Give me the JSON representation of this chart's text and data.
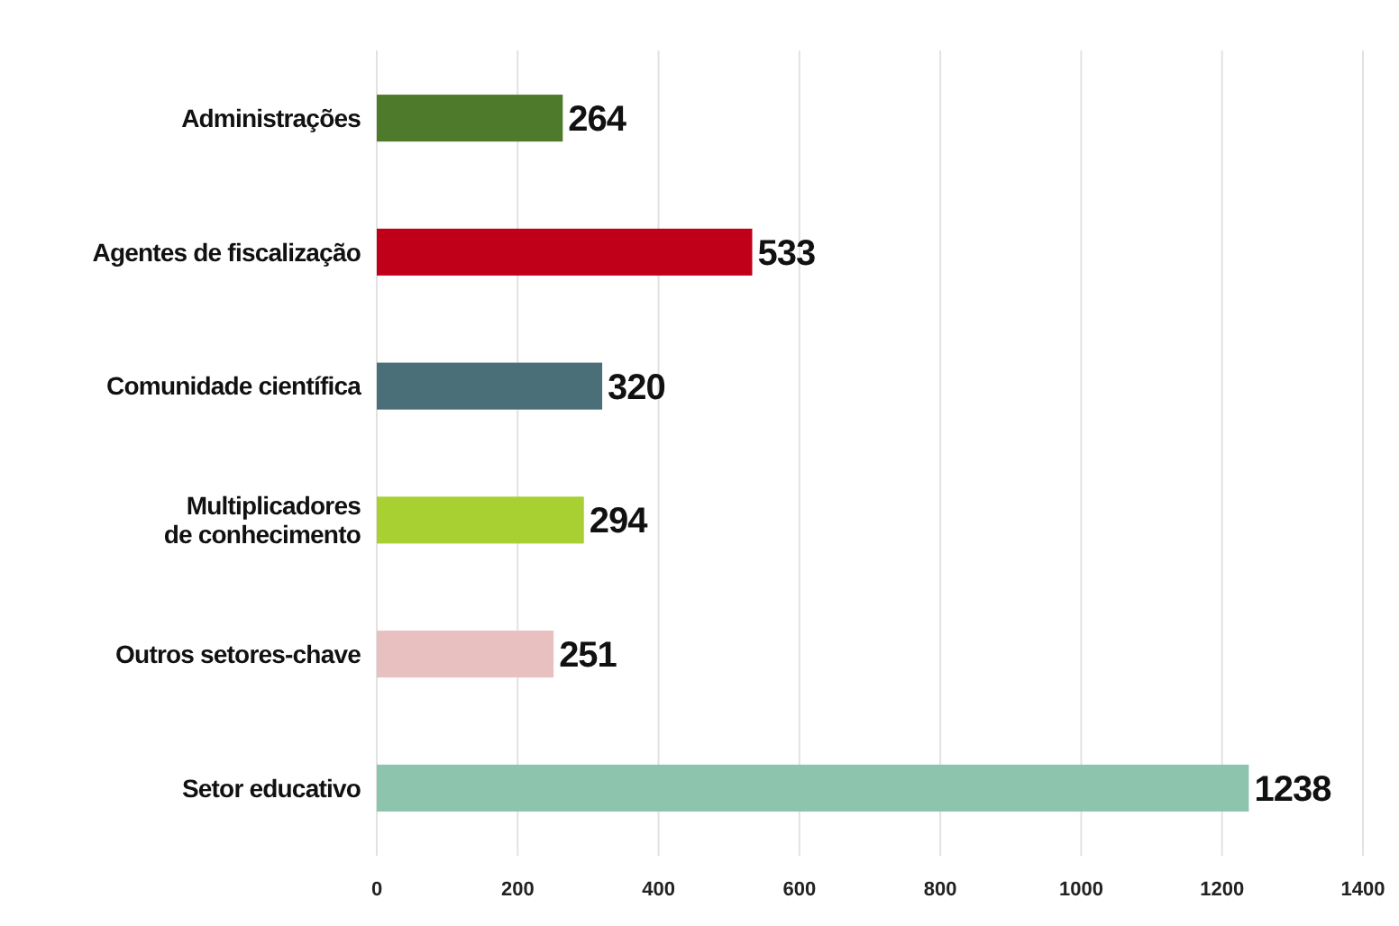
{
  "chart_data": {
    "type": "bar",
    "orientation": "horizontal",
    "categories": [
      "Administrações",
      "Agentes de fiscalização",
      "Comunidade científica",
      "Multiplicadores\nde conhecimento",
      "Outros setores-chave",
      "Setor educativo"
    ],
    "values": [
      264,
      533,
      320,
      294,
      251,
      1238
    ],
    "colors": [
      "#4e7a2c",
      "#c00018",
      "#4a6f78",
      "#a8d033",
      "#e8c0c0",
      "#8cc4ae"
    ],
    "xlim": [
      0,
      1400
    ],
    "xticks": [
      0,
      200,
      400,
      600,
      800,
      1000,
      1200,
      1400
    ],
    "grid": "x",
    "data_labels": true
  }
}
